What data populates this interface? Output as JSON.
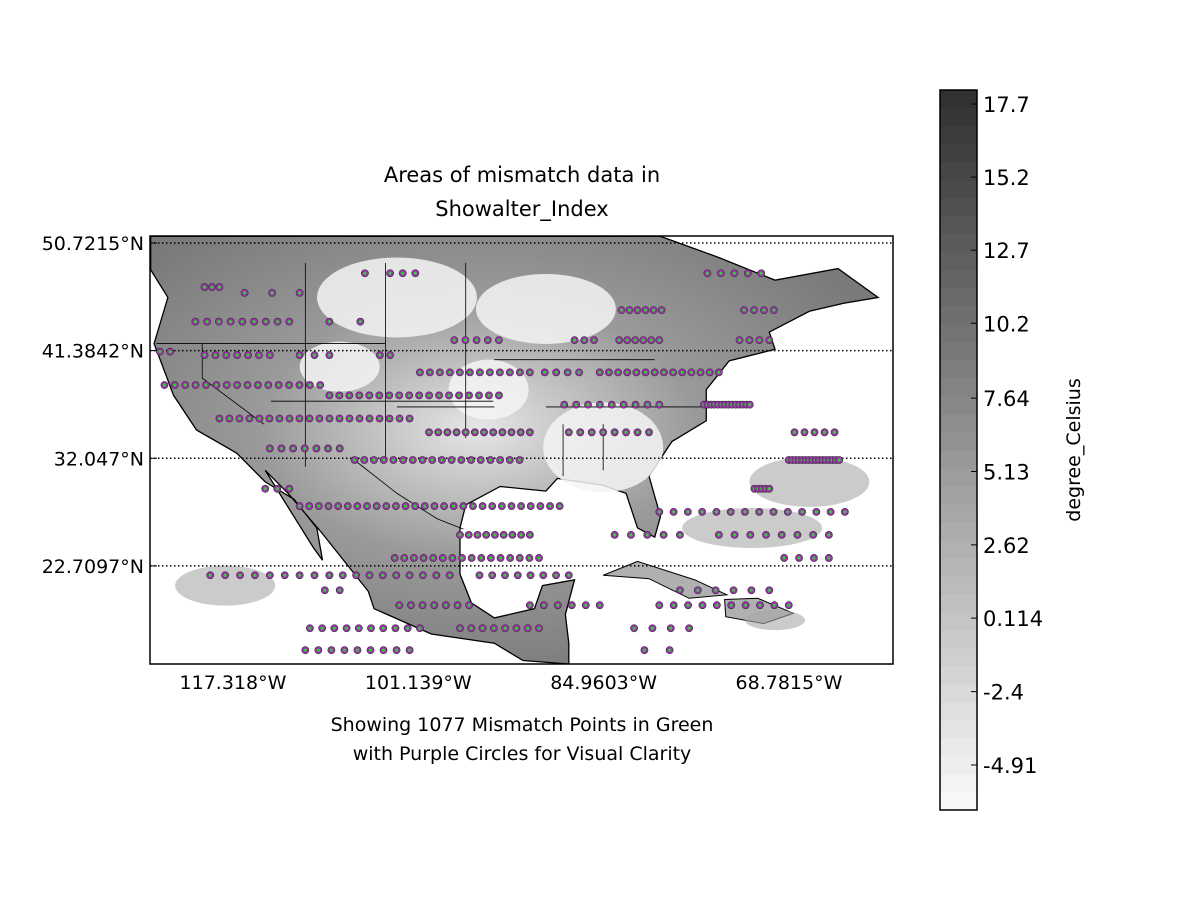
{
  "chart_data": {
    "type": "scatter",
    "title_lines": [
      "Areas of mismatch data in",
      "Showalter_Index"
    ],
    "xlabel_lines": [
      "Showing 1077 Mismatch Points in Green",
      "with Purple Circles for Visual Clarity"
    ],
    "mismatch_count": 1077,
    "xlim": [
      -124.56,
      -59.7
    ],
    "ylim": [
      14.2,
      51.33
    ],
    "x_ticks": [
      {
        "value": -117.318,
        "label": "117.318°W"
      },
      {
        "value": -101.139,
        "label": "101.139°W"
      },
      {
        "value": -84.9603,
        "label": "84.9603°W"
      },
      {
        "value": -68.7815,
        "label": "68.7815°W"
      }
    ],
    "y_ticks": [
      {
        "value": 50.7215,
        "label": "50.7215°N"
      },
      {
        "value": 41.3842,
        "label": "41.3842°N"
      },
      {
        "value": 32.047,
        "label": "32.047°N"
      },
      {
        "value": 22.7097,
        "label": "22.7097°N"
      }
    ],
    "grid": "dotted parallels",
    "colorbar": {
      "label": "degree_Celsius",
      "range": [
        -6.45,
        18.18
      ],
      "ticks": [
        17.7,
        15.2,
        12.7,
        10.2,
        7.64,
        5.13,
        2.62,
        0.114,
        -2.4,
        -4.91
      ],
      "tick_labels": [
        "17.7",
        "15.2",
        "12.7",
        "10.2",
        "7.64",
        "5.13",
        "2.62",
        "0.114",
        "-2.4",
        "-4.91"
      ],
      "cmap": "greys"
    },
    "colors": {
      "point_fill": "#22dd22",
      "circle": "#a030b0",
      "circle_edge": "#333333"
    },
    "point_rows": [
      {
        "lat": 48.1,
        "segments": [
          [
            -105.8,
            -105.8,
            1
          ],
          [
            -103.6,
            -101.4,
            3
          ],
          [
            -75.9,
            -71.2,
            5
          ]
        ]
      },
      {
        "lat": 46.9,
        "segments": [
          [
            -119.8,
            -118.5,
            3
          ]
        ]
      },
      {
        "lat": 46.4,
        "segments": [
          [
            -116.3,
            -111.5,
            3
          ]
        ]
      },
      {
        "lat": 44.9,
        "segments": [
          [
            -83.4,
            -79.9,
            6
          ],
          [
            -72.7,
            -70.1,
            4
          ]
        ]
      },
      {
        "lat": 43.9,
        "segments": [
          [
            -120.6,
            -112.4,
            9
          ],
          [
            -108.9,
            -106.2,
            2
          ]
        ]
      },
      {
        "lat": 42.3,
        "segments": [
          [
            -98.0,
            -94.1,
            5
          ],
          [
            -87.5,
            -85.8,
            3
          ],
          [
            -83.6,
            -80.1,
            6
          ],
          [
            -73.1,
            -70.5,
            4
          ]
        ]
      },
      {
        "lat": 41.3,
        "segments": [
          [
            -123.7,
            -122.8,
            2
          ]
        ]
      },
      {
        "lat": 41.0,
        "segments": [
          [
            -119.8,
            -114.1,
            7
          ],
          [
            -111.5,
            -108.9,
            3
          ],
          [
            -104.5,
            -103.6,
            2
          ]
        ]
      },
      {
        "lat": 39.5,
        "segments": [
          [
            -101.0,
            -91.4,
            12
          ],
          [
            -90.1,
            -87.1,
            4
          ],
          [
            -85.3,
            -74.9,
            14
          ]
        ]
      },
      {
        "lat": 38.4,
        "segments": [
          [
            -123.3,
            -109.7,
            16
          ]
        ]
      },
      {
        "lat": 37.5,
        "segments": [
          [
            -108.9,
            -94.1,
            18
          ]
        ]
      },
      {
        "lat": 36.7,
        "segments": [
          [
            -88.4,
            -80.1,
            9
          ],
          [
            -76.2,
            -72.2,
            14
          ]
        ]
      },
      {
        "lat": 35.5,
        "segments": [
          [
            -118.5,
            -101.9,
            20
          ]
        ]
      },
      {
        "lat": 34.3,
        "segments": [
          [
            -100.2,
            -91.4,
            12
          ],
          [
            -88.0,
            -81.0,
            8
          ],
          [
            -68.3,
            -64.8,
            5
          ]
        ]
      },
      {
        "lat": 32.9,
        "segments": [
          [
            -114.1,
            -108.0,
            7
          ]
        ]
      },
      {
        "lat": 31.9,
        "segments": [
          [
            -106.7,
            -92.3,
            18
          ],
          [
            -68.8,
            -64.4,
            16
          ]
        ]
      },
      {
        "lat": 29.4,
        "segments": [
          [
            -114.5,
            -112.4,
            3
          ],
          [
            -71.8,
            -70.5,
            5
          ]
        ]
      },
      {
        "lat": 27.9,
        "segments": [
          [
            -111.5,
            -88.8,
            28
          ]
        ]
      },
      {
        "lat": 27.4,
        "segments": [
          [
            -80.1,
            -63.9,
            14
          ]
        ]
      },
      {
        "lat": 25.4,
        "segments": [
          [
            -97.5,
            -91.4,
            9
          ],
          [
            -84.0,
            -78.3,
            5
          ],
          [
            -74.9,
            -65.3,
            8
          ]
        ]
      },
      {
        "lat": 23.4,
        "segments": [
          [
            -103.2,
            -90.6,
            16
          ],
          [
            -69.2,
            -65.3,
            4
          ]
        ]
      },
      {
        "lat": 21.9,
        "segments": [
          [
            -119.3,
            -108.9,
            9
          ],
          [
            -108.9,
            -98.4,
            10
          ],
          [
            -95.8,
            -88.0,
            8
          ]
        ]
      },
      {
        "lat": 20.6,
        "segments": [
          [
            -109.3,
            -108.0,
            2
          ],
          [
            -78.3,
            -70.5,
            6
          ]
        ]
      },
      {
        "lat": 19.3,
        "segments": [
          [
            -102.8,
            -96.7,
            7
          ],
          [
            -91.4,
            -85.3,
            6
          ],
          [
            -80.1,
            -68.8,
            10
          ]
        ]
      },
      {
        "lat": 17.3,
        "segments": [
          [
            -110.6,
            -101.0,
            10
          ],
          [
            -97.5,
            -90.6,
            8
          ],
          [
            -82.3,
            -77.5,
            4
          ]
        ]
      },
      {
        "lat": 15.4,
        "segments": [
          [
            -111.0,
            -101.9,
            9
          ],
          [
            -81.4,
            -79.2,
            2
          ]
        ]
      }
    ]
  }
}
